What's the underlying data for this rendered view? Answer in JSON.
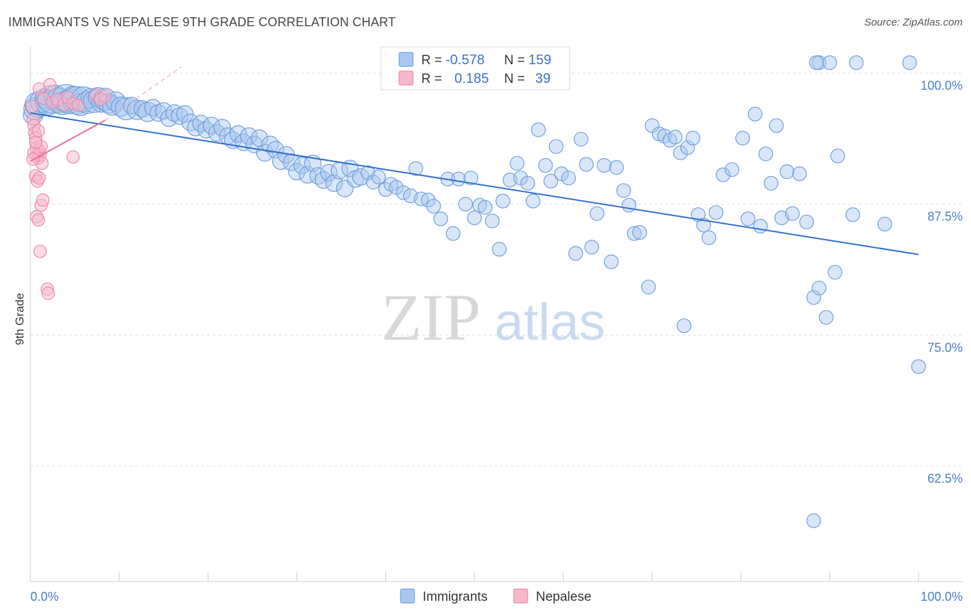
{
  "header": {
    "title": "IMMIGRANTS VS NEPALESE 9TH GRADE CORRELATION CHART",
    "source": "Source: ZipAtlas.com"
  },
  "watermark": {
    "zip": "ZIP",
    "atlas": "atlas"
  },
  "legend": {
    "rows": [
      {
        "r_label": "R =",
        "r_value": "-0.578",
        "n_label": "N =",
        "n_value": "159",
        "color": "#a9c8f0",
        "stroke": "#6f9fdc"
      },
      {
        "r_label": "R =",
        "r_value": "0.185",
        "n_label": "N =",
        "n_value": "39",
        "color": "#f8b8cc",
        "stroke": "#e88aa8"
      }
    ]
  },
  "bottom_legend": [
    {
      "label": "Immigrants",
      "color": "#a9c8f0",
      "stroke": "#6f9fdc"
    },
    {
      "label": "Nepalese",
      "color": "#f8b8cc",
      "stroke": "#e88aa8"
    }
  ],
  "chart_data": {
    "type": "scatter",
    "ylabel": "9th Grade",
    "x_tick_labels": [
      "0.0%",
      "100.0%"
    ],
    "y_tick_labels": [
      "100.0%",
      "87.5%",
      "75.0%",
      "62.5%"
    ],
    "y_ticks": [
      100,
      87.5,
      75,
      62.5
    ],
    "xlim": [
      0,
      100
    ],
    "ylim": [
      51.5,
      102.5
    ],
    "grid": true,
    "series": [
      {
        "name": "Immigrants",
        "color": "#a9c8f0",
        "stroke": "#6f9fdc",
        "trend": {
          "x": [
            0,
            100
          ],
          "y": [
            96.2,
            82.7
          ],
          "color": "#2f6fce"
        },
        "points": [
          [
            0.3,
            96.0,
            14
          ],
          [
            0.5,
            96.6,
            16
          ],
          [
            0.8,
            97.0,
            18
          ],
          [
            1.2,
            97.3,
            16
          ],
          [
            1.6,
            97.6,
            14
          ],
          [
            2.0,
            97.2,
            18
          ],
          [
            2.4,
            97.5,
            20
          ],
          [
            2.8,
            97.8,
            16
          ],
          [
            3.2,
            97.4,
            18
          ],
          [
            3.6,
            97.1,
            16
          ],
          [
            4.0,
            97.6,
            20
          ],
          [
            4.4,
            97.3,
            18
          ],
          [
            4.8,
            97.7,
            16
          ],
          [
            5.2,
            97.4,
            20
          ],
          [
            5.6,
            97.0,
            16
          ],
          [
            6.0,
            97.5,
            18
          ],
          [
            6.4,
            97.2,
            16
          ],
          [
            6.8,
            97.6,
            14
          ],
          [
            7.2,
            97.3,
            16
          ],
          [
            7.6,
            97.7,
            14
          ],
          [
            8.0,
            97.2,
            14
          ],
          [
            8.4,
            97.5,
            16
          ],
          [
            8.8,
            97.1,
            14
          ],
          [
            9.2,
            96.9,
            14
          ],
          [
            9.6,
            97.3,
            14
          ],
          [
            10.2,
            96.8,
            14
          ],
          [
            10.8,
            96.6,
            16
          ],
          [
            11.4,
            96.9,
            12
          ],
          [
            12.0,
            96.5,
            14
          ],
          [
            12.6,
            96.6,
            12
          ],
          [
            13.2,
            96.3,
            14
          ],
          [
            13.8,
            96.7,
            12
          ],
          [
            14.4,
            96.2,
            12
          ],
          [
            15.0,
            96.4,
            12
          ],
          [
            15.6,
            95.7,
            12
          ],
          [
            16.2,
            96.2,
            12
          ],
          [
            16.8,
            95.9,
            12
          ],
          [
            17.4,
            96.1,
            12
          ],
          [
            18.0,
            95.3,
            12
          ],
          [
            18.6,
            94.8,
            12
          ],
          [
            19.2,
            95.2,
            12
          ],
          [
            19.8,
            94.6,
            12
          ],
          [
            20.4,
            95.0,
            12
          ],
          [
            21.0,
            94.3,
            12
          ],
          [
            21.6,
            94.8,
            12
          ],
          [
            22.2,
            94.0,
            12
          ],
          [
            22.8,
            93.6,
            12
          ],
          [
            23.4,
            94.2,
            12
          ],
          [
            24.0,
            93.4,
            12
          ],
          [
            24.6,
            94.0,
            12
          ],
          [
            25.2,
            93.2,
            12
          ],
          [
            25.8,
            93.8,
            12
          ],
          [
            26.4,
            92.4,
            12
          ],
          [
            27.0,
            93.2,
            12
          ],
          [
            27.6,
            92.7,
            12
          ],
          [
            28.2,
            91.6,
            12
          ],
          [
            28.8,
            92.2,
            12
          ],
          [
            29.4,
            91.5,
            12
          ],
          [
            30.0,
            90.6,
            12
          ],
          [
            30.6,
            91.2,
            12
          ],
          [
            31.2,
            90.3,
            12
          ],
          [
            31.8,
            91.4,
            12
          ],
          [
            32.4,
            90.2,
            12
          ],
          [
            33.0,
            89.8,
            12
          ],
          [
            33.6,
            90.5,
            12
          ],
          [
            34.2,
            89.5,
            12
          ],
          [
            34.8,
            90.7,
            12
          ],
          [
            35.4,
            89.0,
            12
          ],
          [
            36.0,
            90.9,
            12
          ],
          [
            36.6,
            89.9,
            12
          ],
          [
            37.2,
            90.1,
            12
          ],
          [
            38.0,
            90.5,
            10
          ],
          [
            38.6,
            89.6,
            10
          ],
          [
            39.2,
            90.1,
            10
          ],
          [
            40.0,
            88.9,
            10
          ],
          [
            40.6,
            89.4,
            10
          ],
          [
            41.2,
            89.1,
            10
          ],
          [
            42.0,
            88.6,
            10
          ],
          [
            42.8,
            88.3,
            10
          ],
          [
            43.4,
            90.9,
            10
          ],
          [
            44.0,
            88.0,
            10
          ],
          [
            44.8,
            87.9,
            10
          ],
          [
            45.4,
            87.3,
            10
          ],
          [
            46.2,
            86.1,
            10
          ],
          [
            47.0,
            89.9,
            10
          ],
          [
            47.6,
            84.7,
            10
          ],
          [
            48.2,
            89.9,
            10
          ],
          [
            49.0,
            87.5,
            10
          ],
          [
            49.6,
            90.0,
            10
          ],
          [
            50.0,
            86.2,
            10
          ],
          [
            50.6,
            87.4,
            10
          ],
          [
            51.2,
            87.2,
            10
          ],
          [
            52.0,
            85.9,
            10
          ],
          [
            52.8,
            83.2,
            10
          ],
          [
            53.2,
            87.8,
            10
          ],
          [
            54.0,
            89.8,
            10
          ],
          [
            54.8,
            91.4,
            10
          ],
          [
            55.2,
            90.0,
            10
          ],
          [
            56.0,
            89.5,
            10
          ],
          [
            56.6,
            87.8,
            10
          ],
          [
            57.2,
            94.6,
            10
          ],
          [
            58.0,
            91.2,
            10
          ],
          [
            58.6,
            89.7,
            10
          ],
          [
            59.2,
            93.0,
            10
          ],
          [
            59.8,
            90.4,
            10
          ],
          [
            60.6,
            90.0,
            10
          ],
          [
            61.4,
            82.8,
            10
          ],
          [
            62.0,
            93.7,
            10
          ],
          [
            62.6,
            91.3,
            10
          ],
          [
            63.2,
            83.4,
            10
          ],
          [
            63.8,
            86.6,
            10
          ],
          [
            64.6,
            91.2,
            10
          ],
          [
            65.4,
            82.0,
            10
          ],
          [
            66.0,
            91.0,
            10
          ],
          [
            66.8,
            88.8,
            10
          ],
          [
            67.4,
            87.4,
            10
          ],
          [
            68.0,
            84.7,
            10
          ],
          [
            68.6,
            84.8,
            10
          ],
          [
            69.6,
            79.6,
            10
          ],
          [
            70.0,
            95.0,
            10
          ],
          [
            70.8,
            94.2,
            10
          ],
          [
            71.4,
            94.0,
            10
          ],
          [
            72.0,
            93.6,
            10
          ],
          [
            72.6,
            93.9,
            10
          ],
          [
            73.2,
            92.4,
            10
          ],
          [
            74.0,
            92.9,
            10
          ],
          [
            74.6,
            93.8,
            10
          ],
          [
            75.2,
            86.5,
            10
          ],
          [
            75.8,
            85.5,
            10
          ],
          [
            76.4,
            84.3,
            10
          ],
          [
            77.2,
            86.7,
            10
          ],
          [
            78.0,
            90.3,
            10
          ],
          [
            79.0,
            90.8,
            10
          ],
          [
            80.2,
            93.8,
            10
          ],
          [
            80.8,
            86.1,
            10
          ],
          [
            81.6,
            96.1,
            10
          ],
          [
            82.2,
            85.4,
            10
          ],
          [
            82.8,
            92.3,
            10
          ],
          [
            83.4,
            89.5,
            10
          ],
          [
            84.0,
            95.0,
            10
          ],
          [
            84.6,
            86.2,
            10
          ],
          [
            85.2,
            90.6,
            10
          ],
          [
            85.8,
            86.6,
            10
          ],
          [
            86.6,
            90.4,
            10
          ],
          [
            87.4,
            85.8,
            10
          ],
          [
            88.2,
            78.6,
            10
          ],
          [
            88.8,
            79.5,
            10
          ],
          [
            89.6,
            76.7,
            10
          ],
          [
            90.6,
            81.0,
            10
          ],
          [
            90.9,
            92.1,
            10
          ],
          [
            92.6,
            86.5,
            10
          ],
          [
            88.8,
            101.0,
            10
          ],
          [
            88.5,
            101.0,
            10
          ],
          [
            93.0,
            101.0,
            10
          ],
          [
            99.0,
            101.0,
            10
          ],
          [
            100.0,
            72.0,
            10
          ],
          [
            96.2,
            85.6,
            10
          ],
          [
            90.0,
            101.0,
            10
          ],
          [
            73.6,
            75.9,
            10
          ],
          [
            88.2,
            57.3,
            10
          ]
        ]
      },
      {
        "name": "Nepalese",
        "color": "#f8b8cc",
        "stroke": "#e88aa8",
        "trend": {
          "x": [
            0,
            8.4
          ],
          "y": [
            91.6,
            95.5
          ],
          "color": "#e8709a",
          "dash_to": [
            17,
            100.6
          ]
        },
        "points": [
          [
            0.2,
            96.8,
            9
          ],
          [
            0.3,
            95.6,
            9
          ],
          [
            0.4,
            95.0,
            9
          ],
          [
            0.5,
            94.3,
            9
          ],
          [
            0.6,
            93.8,
            9
          ],
          [
            0.7,
            92.9,
            9
          ],
          [
            0.8,
            92.2,
            9
          ],
          [
            0.9,
            91.9,
            9
          ],
          [
            1.0,
            92.6,
            9
          ],
          [
            1.1,
            92.2,
            9
          ],
          [
            1.2,
            93.0,
            9
          ],
          [
            1.3,
            91.4,
            9
          ],
          [
            0.6,
            90.2,
            9
          ],
          [
            0.8,
            89.7,
            9
          ],
          [
            1.0,
            90.0,
            9
          ],
          [
            1.2,
            87.4,
            9
          ],
          [
            1.4,
            87.9,
            9
          ],
          [
            0.7,
            86.3,
            9
          ],
          [
            0.9,
            86.0,
            9
          ],
          [
            1.1,
            83.0,
            9
          ],
          [
            1.9,
            79.4,
            9
          ],
          [
            2.0,
            79.0,
            9
          ],
          [
            1.0,
            98.5,
            9
          ],
          [
            1.5,
            97.6,
            9
          ],
          [
            2.2,
            98.9,
            9
          ],
          [
            2.5,
            97.2,
            9
          ],
          [
            3.0,
            97.5,
            9
          ],
          [
            3.8,
            97.0,
            9
          ],
          [
            4.2,
            97.7,
            9
          ],
          [
            4.8,
            97.1,
            9
          ],
          [
            5.4,
            96.9,
            9
          ],
          [
            7.4,
            97.9,
            9
          ],
          [
            7.9,
            97.5,
            9
          ],
          [
            8.4,
            97.8,
            9
          ],
          [
            4.8,
            92.0,
            9
          ],
          [
            0.4,
            92.4,
            9
          ],
          [
            0.6,
            93.4,
            9
          ],
          [
            0.9,
            94.5,
            9
          ],
          [
            0.3,
            91.8,
            9
          ]
        ]
      }
    ]
  }
}
